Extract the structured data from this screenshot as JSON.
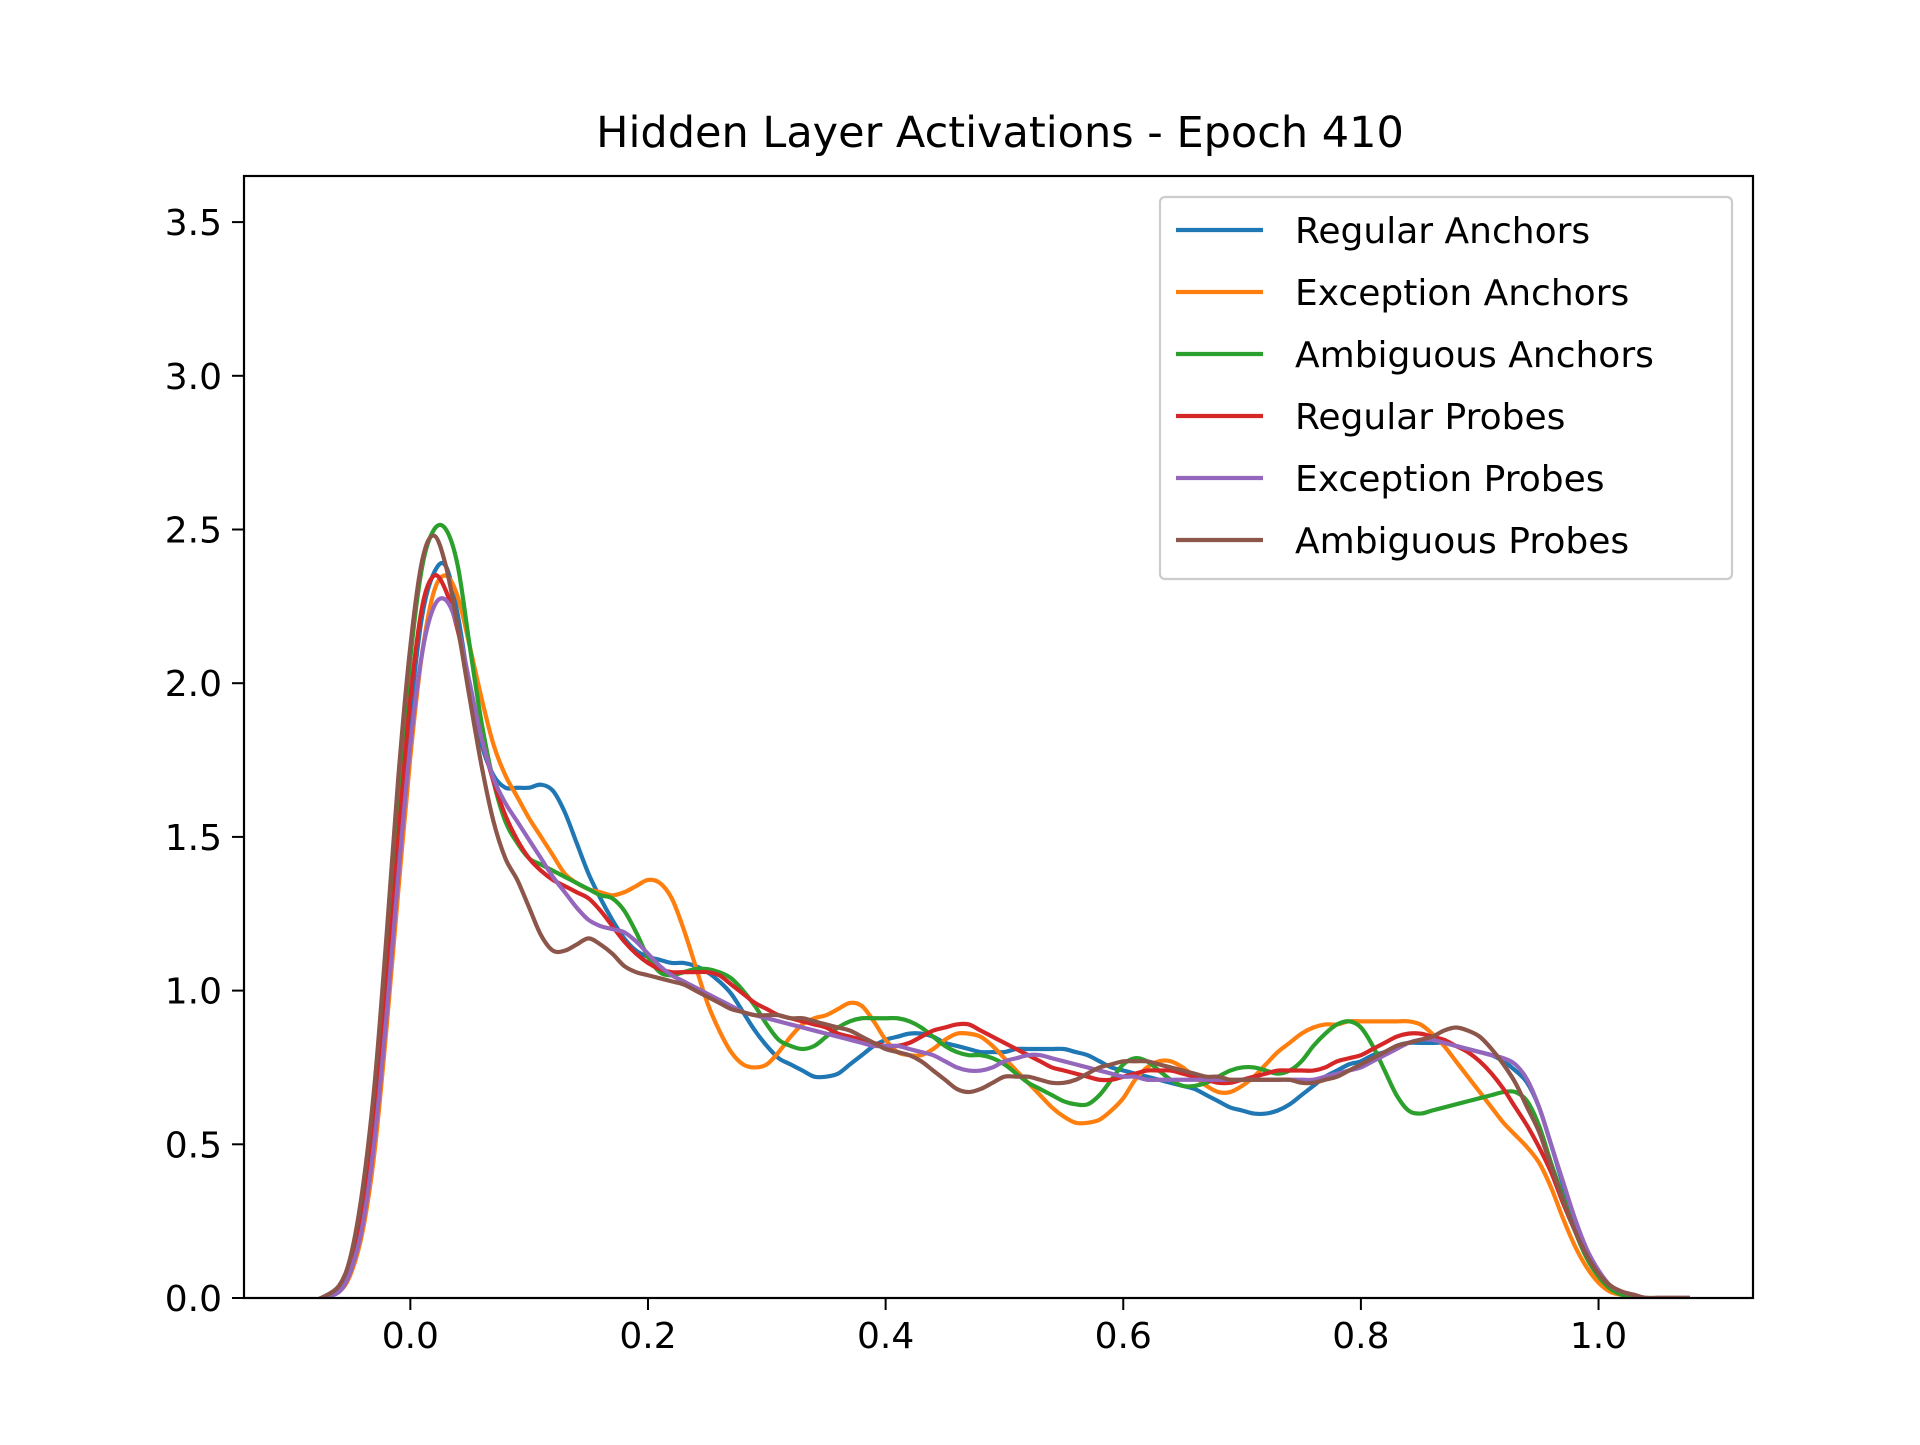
{
  "chart_data": {
    "type": "line",
    "title": "Hidden Layer Activations - Epoch 410",
    "xlabel": "",
    "ylabel": "",
    "xlim": [
      -0.14,
      1.13
    ],
    "ylim": [
      0.0,
      3.65
    ],
    "x_ticks": [
      "0.0",
      "0.2",
      "0.4",
      "0.6",
      "0.8",
      "1.0"
    ],
    "x_tick_values": [
      0.0,
      0.2,
      0.4,
      0.6,
      0.8,
      1.0
    ],
    "y_ticks": [
      "0.0",
      "0.5",
      "1.0",
      "1.5",
      "2.0",
      "2.5",
      "3.0",
      "3.5"
    ],
    "y_tick_values": [
      0.0,
      0.5,
      1.0,
      1.5,
      2.0,
      2.5,
      3.0,
      3.5
    ],
    "grid": false,
    "legend_position": "top-right",
    "x": [
      -0.075,
      -0.06,
      -0.05,
      -0.04,
      -0.03,
      -0.02,
      -0.01,
      0.0,
      0.01,
      0.02,
      0.03,
      0.04,
      0.05,
      0.06,
      0.07,
      0.08,
      0.09,
      0.1,
      0.11,
      0.12,
      0.13,
      0.14,
      0.15,
      0.16,
      0.17,
      0.18,
      0.19,
      0.2,
      0.21,
      0.22,
      0.23,
      0.24,
      0.25,
      0.26,
      0.27,
      0.28,
      0.29,
      0.3,
      0.31,
      0.32,
      0.33,
      0.34,
      0.35,
      0.36,
      0.37,
      0.38,
      0.39,
      0.4,
      0.41,
      0.42,
      0.43,
      0.44,
      0.45,
      0.46,
      0.47,
      0.48,
      0.49,
      0.5,
      0.51,
      0.52,
      0.53,
      0.54,
      0.55,
      0.56,
      0.57,
      0.58,
      0.59,
      0.6,
      0.61,
      0.62,
      0.63,
      0.64,
      0.65,
      0.66,
      0.67,
      0.68,
      0.69,
      0.7,
      0.71,
      0.72,
      0.73,
      0.74,
      0.75,
      0.76,
      0.77,
      0.78,
      0.79,
      0.8,
      0.81,
      0.82,
      0.83,
      0.84,
      0.85,
      0.86,
      0.87,
      0.88,
      0.89,
      0.9,
      0.91,
      0.92,
      0.93,
      0.94,
      0.95,
      0.96,
      0.97,
      0.98,
      0.99,
      1.0,
      1.01,
      1.02,
      1.03,
      1.04,
      1.05,
      1.06,
      1.075
    ],
    "series": [
      {
        "name": "Regular Anchors",
        "color": "#1f77b4",
        "values": [
          0.0,
          0.03,
          0.1,
          0.26,
          0.55,
          0.98,
          1.45,
          1.9,
          2.22,
          2.36,
          2.38,
          2.22,
          1.98,
          1.8,
          1.7,
          1.66,
          1.66,
          1.66,
          1.67,
          1.65,
          1.58,
          1.48,
          1.38,
          1.3,
          1.23,
          1.17,
          1.13,
          1.11,
          1.1,
          1.09,
          1.09,
          1.08,
          1.06,
          1.03,
          0.99,
          0.93,
          0.87,
          0.82,
          0.78,
          0.76,
          0.74,
          0.72,
          0.72,
          0.73,
          0.76,
          0.79,
          0.82,
          0.84,
          0.85,
          0.86,
          0.86,
          0.85,
          0.83,
          0.82,
          0.81,
          0.8,
          0.8,
          0.8,
          0.81,
          0.81,
          0.81,
          0.81,
          0.81,
          0.8,
          0.79,
          0.77,
          0.75,
          0.74,
          0.73,
          0.72,
          0.71,
          0.7,
          0.69,
          0.68,
          0.66,
          0.64,
          0.62,
          0.61,
          0.6,
          0.6,
          0.61,
          0.63,
          0.66,
          0.69,
          0.72,
          0.74,
          0.76,
          0.77,
          0.79,
          0.8,
          0.82,
          0.83,
          0.83,
          0.83,
          0.83,
          0.82,
          0.81,
          0.8,
          0.79,
          0.77,
          0.74,
          0.7,
          0.62,
          0.5,
          0.37,
          0.25,
          0.15,
          0.08,
          0.04,
          0.02,
          0.01,
          0.0,
          0.0,
          0.0,
          0.0
        ]
      },
      {
        "name": "Exception Anchors",
        "color": "#ff7f0e",
        "values": [
          0.0,
          0.02,
          0.08,
          0.22,
          0.48,
          0.88,
          1.33,
          1.76,
          2.1,
          2.3,
          2.35,
          2.28,
          2.12,
          1.95,
          1.8,
          1.7,
          1.63,
          1.56,
          1.5,
          1.44,
          1.38,
          1.35,
          1.33,
          1.32,
          1.31,
          1.32,
          1.34,
          1.36,
          1.35,
          1.3,
          1.2,
          1.08,
          0.96,
          0.87,
          0.8,
          0.76,
          0.75,
          0.76,
          0.8,
          0.85,
          0.89,
          0.91,
          0.92,
          0.94,
          0.96,
          0.95,
          0.9,
          0.84,
          0.8,
          0.79,
          0.79,
          0.81,
          0.84,
          0.86,
          0.86,
          0.85,
          0.82,
          0.78,
          0.74,
          0.7,
          0.66,
          0.62,
          0.59,
          0.57,
          0.57,
          0.58,
          0.61,
          0.65,
          0.71,
          0.75,
          0.77,
          0.77,
          0.75,
          0.72,
          0.69,
          0.67,
          0.67,
          0.69,
          0.72,
          0.76,
          0.8,
          0.83,
          0.86,
          0.88,
          0.89,
          0.89,
          0.9,
          0.9,
          0.9,
          0.9,
          0.9,
          0.9,
          0.89,
          0.86,
          0.82,
          0.77,
          0.72,
          0.67,
          0.62,
          0.57,
          0.53,
          0.49,
          0.44,
          0.36,
          0.26,
          0.17,
          0.1,
          0.05,
          0.02,
          0.01,
          0.0,
          0.0,
          0.0,
          0.0,
          0.0
        ]
      },
      {
        "name": "Ambiguous Anchors",
        "color": "#2ca02c",
        "values": [
          0.0,
          0.03,
          0.11,
          0.3,
          0.63,
          1.1,
          1.63,
          2.08,
          2.38,
          2.5,
          2.5,
          2.38,
          2.12,
          1.87,
          1.68,
          1.55,
          1.48,
          1.43,
          1.41,
          1.39,
          1.37,
          1.35,
          1.33,
          1.31,
          1.3,
          1.26,
          1.19,
          1.11,
          1.06,
          1.05,
          1.06,
          1.07,
          1.07,
          1.06,
          1.04,
          1.0,
          0.95,
          0.89,
          0.84,
          0.82,
          0.81,
          0.82,
          0.85,
          0.88,
          0.9,
          0.91,
          0.91,
          0.91,
          0.91,
          0.9,
          0.88,
          0.85,
          0.82,
          0.8,
          0.79,
          0.79,
          0.78,
          0.76,
          0.73,
          0.7,
          0.68,
          0.66,
          0.64,
          0.63,
          0.63,
          0.66,
          0.71,
          0.76,
          0.78,
          0.77,
          0.74,
          0.71,
          0.69,
          0.69,
          0.7,
          0.72,
          0.74,
          0.75,
          0.75,
          0.74,
          0.73,
          0.74,
          0.77,
          0.82,
          0.86,
          0.89,
          0.9,
          0.88,
          0.82,
          0.74,
          0.66,
          0.61,
          0.6,
          0.61,
          0.62,
          0.63,
          0.64,
          0.65,
          0.66,
          0.67,
          0.67,
          0.64,
          0.56,
          0.44,
          0.33,
          0.22,
          0.13,
          0.07,
          0.03,
          0.01,
          0.0,
          0.0,
          0.0,
          0.0,
          0.0
        ]
      },
      {
        "name": "Regular Probes",
        "color": "#d62728",
        "values": [
          0.0,
          0.03,
          0.1,
          0.27,
          0.57,
          1.0,
          1.5,
          1.95,
          2.25,
          2.35,
          2.3,
          2.17,
          1.99,
          1.82,
          1.68,
          1.57,
          1.49,
          1.43,
          1.39,
          1.36,
          1.34,
          1.32,
          1.3,
          1.26,
          1.21,
          1.16,
          1.12,
          1.09,
          1.07,
          1.06,
          1.06,
          1.06,
          1.06,
          1.05,
          1.02,
          0.99,
          0.96,
          0.94,
          0.92,
          0.91,
          0.9,
          0.89,
          0.88,
          0.86,
          0.85,
          0.84,
          0.83,
          0.82,
          0.82,
          0.83,
          0.85,
          0.87,
          0.88,
          0.89,
          0.89,
          0.87,
          0.85,
          0.83,
          0.81,
          0.79,
          0.77,
          0.75,
          0.74,
          0.73,
          0.72,
          0.71,
          0.71,
          0.72,
          0.73,
          0.74,
          0.74,
          0.74,
          0.73,
          0.72,
          0.71,
          0.7,
          0.7,
          0.71,
          0.72,
          0.73,
          0.74,
          0.74,
          0.74,
          0.74,
          0.75,
          0.77,
          0.78,
          0.79,
          0.81,
          0.83,
          0.85,
          0.86,
          0.86,
          0.85,
          0.84,
          0.82,
          0.8,
          0.77,
          0.73,
          0.68,
          0.62,
          0.56,
          0.49,
          0.41,
          0.31,
          0.22,
          0.14,
          0.08,
          0.04,
          0.02,
          0.01,
          0.0,
          0.0,
          0.0,
          0.0
        ]
      },
      {
        "name": "Exception Probes",
        "color": "#9467bd",
        "values": [
          0.0,
          0.02,
          0.09,
          0.24,
          0.52,
          0.92,
          1.38,
          1.8,
          2.1,
          2.25,
          2.27,
          2.18,
          2.0,
          1.82,
          1.69,
          1.61,
          1.55,
          1.49,
          1.43,
          1.37,
          1.32,
          1.27,
          1.23,
          1.21,
          1.2,
          1.19,
          1.16,
          1.12,
          1.08,
          1.05,
          1.03,
          1.01,
          0.99,
          0.97,
          0.95,
          0.93,
          0.92,
          0.91,
          0.9,
          0.89,
          0.88,
          0.87,
          0.86,
          0.85,
          0.84,
          0.83,
          0.82,
          0.82,
          0.82,
          0.81,
          0.8,
          0.79,
          0.77,
          0.75,
          0.74,
          0.74,
          0.75,
          0.77,
          0.78,
          0.79,
          0.79,
          0.78,
          0.77,
          0.76,
          0.75,
          0.74,
          0.73,
          0.72,
          0.72,
          0.71,
          0.71,
          0.71,
          0.71,
          0.71,
          0.71,
          0.71,
          0.71,
          0.71,
          0.71,
          0.71,
          0.71,
          0.71,
          0.71,
          0.71,
          0.72,
          0.73,
          0.74,
          0.75,
          0.77,
          0.79,
          0.81,
          0.83,
          0.84,
          0.84,
          0.83,
          0.82,
          0.81,
          0.8,
          0.79,
          0.78,
          0.76,
          0.71,
          0.62,
          0.5,
          0.38,
          0.26,
          0.16,
          0.09,
          0.04,
          0.02,
          0.01,
          0.0,
          0.0,
          0.0,
          0.0
        ]
      },
      {
        "name": "Ambiguous Probes",
        "color": "#8c564b",
        "values": [
          0.0,
          0.04,
          0.14,
          0.36,
          0.7,
          1.18,
          1.7,
          2.12,
          2.4,
          2.48,
          2.38,
          2.18,
          1.95,
          1.73,
          1.55,
          1.43,
          1.36,
          1.27,
          1.18,
          1.13,
          1.13,
          1.15,
          1.17,
          1.15,
          1.12,
          1.08,
          1.06,
          1.05,
          1.04,
          1.03,
          1.02,
          1.0,
          0.98,
          0.96,
          0.94,
          0.93,
          0.92,
          0.92,
          0.92,
          0.91,
          0.91,
          0.9,
          0.89,
          0.88,
          0.87,
          0.85,
          0.83,
          0.81,
          0.8,
          0.79,
          0.77,
          0.74,
          0.71,
          0.68,
          0.67,
          0.68,
          0.7,
          0.72,
          0.72,
          0.72,
          0.71,
          0.7,
          0.7,
          0.71,
          0.73,
          0.75,
          0.76,
          0.77,
          0.77,
          0.77,
          0.76,
          0.75,
          0.74,
          0.73,
          0.72,
          0.72,
          0.71,
          0.71,
          0.71,
          0.71,
          0.71,
          0.71,
          0.7,
          0.7,
          0.71,
          0.72,
          0.74,
          0.76,
          0.78,
          0.8,
          0.82,
          0.83,
          0.84,
          0.85,
          0.87,
          0.88,
          0.87,
          0.85,
          0.81,
          0.76,
          0.7,
          0.62,
          0.54,
          0.43,
          0.32,
          0.22,
          0.14,
          0.08,
          0.04,
          0.02,
          0.01,
          0.0,
          0.0,
          0.0,
          0.0
        ]
      }
    ]
  }
}
